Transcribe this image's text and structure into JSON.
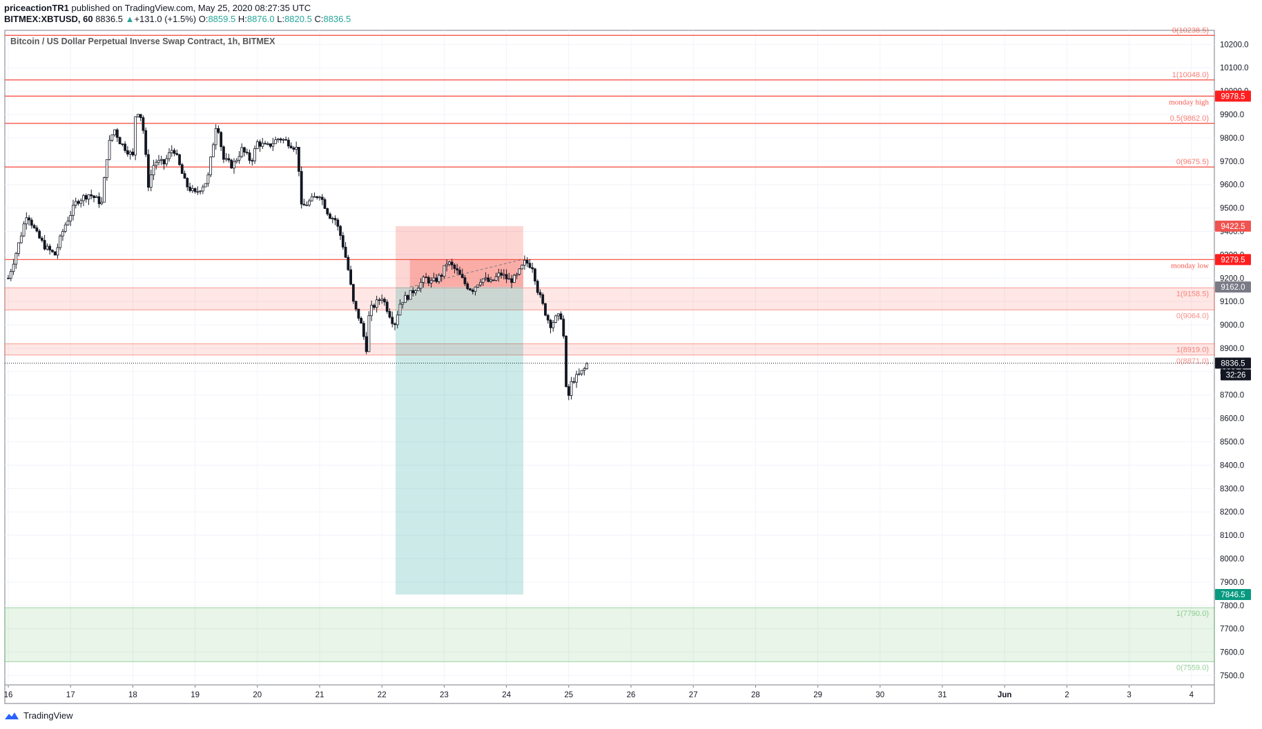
{
  "header": {
    "author": "priceactionTR1",
    "published_text": "published on TradingView.com, May 25, 2020 08:27:35 UTC",
    "symbol": "BITMEX:XBTUSD, 60",
    "last": "8836.5",
    "change": "+131.0 (+1.5%)",
    "o_label": "O:",
    "o": "8859.5",
    "h_label": "H:",
    "h": "8876.0",
    "l_label": "L:",
    "l": "8820.5",
    "c_label": "C:",
    "c": "8836.5"
  },
  "footer": {
    "brand": "TradingView"
  },
  "chart_data": {
    "type": "candlestick",
    "title": "Bitcoin / US Dollar Perpetual Inverse Swap Contract, 1h, BITMEX",
    "ylim": [
      7460,
      10260
    ],
    "y_ticks": [
      10200,
      10100,
      10000,
      9900,
      9800,
      9700,
      9600,
      9500,
      9400,
      9300,
      9200,
      9100,
      9000,
      8900,
      8800,
      8700,
      8600,
      8500,
      8400,
      8300,
      8200,
      8100,
      8000,
      7900,
      7800,
      7700,
      7600,
      7500
    ],
    "y_tick_labels": [
      "10200.0",
      "10100.0",
      "10000.0",
      "9900.0",
      "9800.0",
      "9700.0",
      "9600.0",
      "9500.0",
      "9400.0",
      "9300.0",
      "9200.0",
      "9100.0",
      "9000.0",
      "8900.0",
      "8800.0",
      "8700.0",
      "8600.0",
      "8500.0",
      "8400.0",
      "8300.0",
      "8200.0",
      "8100.0",
      "8000.0",
      "7900.0",
      "7800.0",
      "7700.0",
      "7600.0",
      "7500.0"
    ],
    "x_ticks": [
      "16",
      "17",
      "18",
      "19",
      "20",
      "21",
      "22",
      "23",
      "24",
      "25",
      "26",
      "27",
      "28",
      "29",
      "30",
      "31",
      "Jun",
      "2",
      "3",
      "4"
    ],
    "grid": true,
    "horizontal_lines": [
      {
        "price": 10238.5,
        "label": "0(10238.5)"
      },
      {
        "price": 10048.0,
        "label": "1(10048.0)"
      },
      {
        "price": 9978.5,
        "label": "monday high"
      },
      {
        "price": 9862.0,
        "label": "0.5(9862.0)"
      },
      {
        "price": 9675.5,
        "label": "0(9675.5)"
      },
      {
        "price": 9279.5,
        "label": "monday low"
      }
    ],
    "zones": [
      {
        "from": 9064.0,
        "to": 9158.5,
        "top_label": "1(9158.5)",
        "bottom_label": "0(9064.0)",
        "color": "#f44336"
      },
      {
        "from": 8871.0,
        "to": 8919.0,
        "top_label": "1(8919.0)",
        "bottom_label": "0(8871.0)",
        "color": "#f44336"
      },
      {
        "from": 7559.0,
        "to": 7790.0,
        "top_label": "1(7790.0)",
        "bottom_label": "0(7559.0)",
        "color": "#4caf50"
      }
    ],
    "position": {
      "x_from": 22.22,
      "x_to": 24.27,
      "stop": 9422.5,
      "entry": 9162.0,
      "target": 7846.5
    },
    "price_tags": [
      {
        "price": 9978.5,
        "text": "9978.5",
        "color": "#ff1e1e"
      },
      {
        "price": 9422.5,
        "text": "9422.5",
        "color": "#f05350"
      },
      {
        "price": 9279.5,
        "text": "9279.5",
        "color": "#ff1e1e"
      },
      {
        "price": 9162.0,
        "text": "9162.0",
        "color": "#787b86"
      },
      {
        "price": 8836.5,
        "text": "8836.5",
        "color": "#131722"
      },
      {
        "price": 7846.5,
        "text": "7846.5",
        "color": "#089981"
      }
    ],
    "countdown": "32:26",
    "current_price": 8836.5,
    "price_path": [
      [
        16.0,
        9200
      ],
      [
        16.15,
        9330
      ],
      [
        16.3,
        9480
      ],
      [
        16.45,
        9390
      ],
      [
        16.6,
        9330
      ],
      [
        16.75,
        9300
      ],
      [
        16.9,
        9420
      ],
      [
        17.1,
        9530
      ],
      [
        17.3,
        9560
      ],
      [
        17.5,
        9520
      ],
      [
        17.6,
        9760
      ],
      [
        17.7,
        9840
      ],
      [
        17.8,
        9780
      ],
      [
        18.0,
        9720
      ],
      [
        18.05,
        9930
      ],
      [
        18.15,
        9880
      ],
      [
        18.25,
        9600
      ],
      [
        18.35,
        9700
      ],
      [
        18.5,
        9690
      ],
      [
        18.65,
        9760
      ],
      [
        18.85,
        9600
      ],
      [
        19.0,
        9560
      ],
      [
        19.2,
        9620
      ],
      [
        19.35,
        9880
      ],
      [
        19.45,
        9710
      ],
      [
        19.6,
        9680
      ],
      [
        19.75,
        9750
      ],
      [
        19.9,
        9700
      ],
      [
        20.0,
        9780
      ],
      [
        20.15,
        9760
      ],
      [
        20.35,
        9800
      ],
      [
        20.5,
        9780
      ],
      [
        20.65,
        9750
      ],
      [
        20.7,
        9500
      ],
      [
        20.85,
        9530
      ],
      [
        21.0,
        9560
      ],
      [
        21.15,
        9470
      ],
      [
        21.25,
        9450
      ],
      [
        21.35,
        9370
      ],
      [
        21.45,
        9250
      ],
      [
        21.55,
        9080
      ],
      [
        21.65,
        9020
      ],
      [
        21.75,
        8900
      ],
      [
        21.8,
        9060
      ],
      [
        21.9,
        9090
      ],
      [
        22.0,
        9120
      ],
      [
        22.1,
        9060
      ],
      [
        22.2,
        9000
      ],
      [
        22.3,
        9100
      ],
      [
        22.45,
        9130
      ],
      [
        22.55,
        9160
      ],
      [
        22.7,
        9200
      ],
      [
        22.8,
        9180
      ],
      [
        22.95,
        9210
      ],
      [
        23.05,
        9270
      ],
      [
        23.2,
        9230
      ],
      [
        23.35,
        9170
      ],
      [
        23.45,
        9150
      ],
      [
        23.6,
        9200
      ],
      [
        23.75,
        9180
      ],
      [
        23.9,
        9220
      ],
      [
        24.05,
        9190
      ],
      [
        24.15,
        9200
      ],
      [
        24.3,
        9270
      ],
      [
        24.42,
        9250
      ],
      [
        24.5,
        9150
      ],
      [
        24.6,
        9070
      ],
      [
        24.7,
        9000
      ],
      [
        24.8,
        9030
      ],
      [
        24.9,
        9040
      ],
      [
        24.97,
        8660
      ],
      [
        25.05,
        8760
      ],
      [
        25.15,
        8780
      ],
      [
        25.25,
        8810
      ],
      [
        25.3,
        8836.5
      ]
    ]
  }
}
